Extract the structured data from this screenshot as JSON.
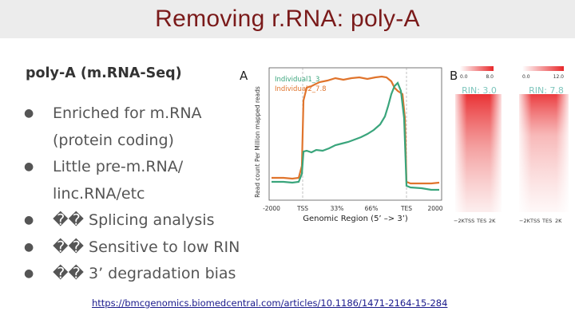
{
  "slide": {
    "title": "Removing r.RNA: poly-A",
    "subtitle": "poly-A (m.RNA-Seq)",
    "bullets": [
      "Enriched for m.RNA (protein coding)",
      "Little pre-m.RNA/ linc.RNA/etc",
      "�� Splicing analysis",
      "�� Sensitive to low RIN",
      "�� 3’ degradation bias"
    ],
    "reference_link": "https://bmcgenomics.biomedcentral.com/articles/10.1186/1471-2164-15-284"
  },
  "figure": {
    "panel_a_label": "A",
    "panel_b_label": "B",
    "ylabel": "Read count Per Million mapped reads",
    "xlabel": "Genomic Region (5’ –> 3’)",
    "x_ticks": [
      "-2000",
      "TSS",
      "33%",
      "66%",
      "TES",
      "2000"
    ],
    "legend": [
      "Individual1_3",
      "Individual2_7.8"
    ],
    "heatmaps": [
      {
        "rin_label": "RIN: 3.0",
        "scale_min": "0.0",
        "scale_max": "8.0",
        "axis_labels": [
          "−2K",
          "TSS",
          "TES",
          "2K"
        ]
      },
      {
        "rin_label": "RIN: 7.8",
        "scale_min": "0.0",
        "scale_max": "12.0",
        "axis_labels": [
          "−2K",
          "TSS",
          "TES",
          "2K"
        ]
      }
    ],
    "colors": {
      "series_1": "#3aa57c",
      "series_2": "#e0742c",
      "heat": "#e8272a",
      "rin": "#7fc6bd"
    }
  }
}
